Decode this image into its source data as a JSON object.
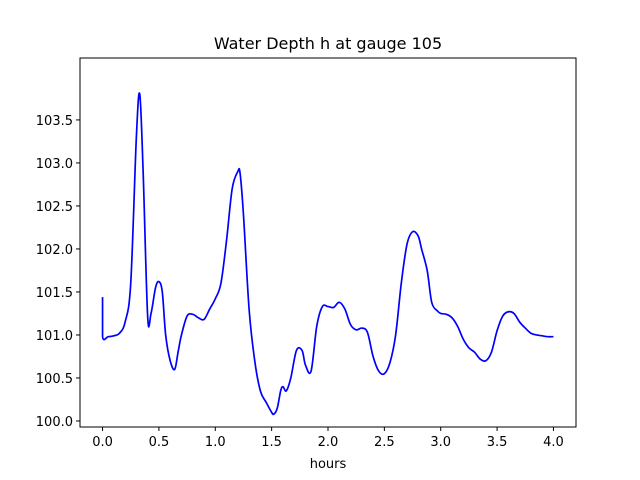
{
  "chart_data": {
    "type": "line",
    "title": "Water Depth h at gauge 105",
    "xlabel": "hours",
    "ylabel": "",
    "xlim": [
      -0.2,
      4.2
    ],
    "ylim": [
      99.93,
      104.22
    ],
    "grid": false,
    "legend": "none",
    "x_ticks": [
      0.0,
      0.5,
      1.0,
      1.5,
      2.0,
      2.5,
      3.0,
      3.5,
      4.0
    ],
    "x_tick_labels": [
      "0.0",
      "0.5",
      "1.0",
      "1.5",
      "2.0",
      "2.5",
      "3.0",
      "3.5",
      "4.0"
    ],
    "y_ticks": [
      100.0,
      100.5,
      101.0,
      101.5,
      102.0,
      102.5,
      103.0,
      103.5
    ],
    "y_tick_labels": [
      "100.0",
      "100.5",
      "101.0",
      "101.5",
      "102.0",
      "102.5",
      "103.0",
      "103.5"
    ],
    "series": [
      {
        "color": "#0000ff",
        "x": [
          0.0,
          0.0,
          0.05,
          0.1,
          0.15,
          0.2,
          0.25,
          0.3,
          0.33,
          0.36,
          0.4,
          0.43,
          0.47,
          0.5,
          0.53,
          0.56,
          0.6,
          0.64,
          0.67,
          0.7,
          0.75,
          0.8,
          0.85,
          0.9,
          0.95,
          1.0,
          1.05,
          1.1,
          1.15,
          1.2,
          1.22,
          1.25,
          1.3,
          1.35,
          1.4,
          1.45,
          1.5,
          1.52,
          1.55,
          1.58,
          1.6,
          1.63,
          1.67,
          1.72,
          1.77,
          1.8,
          1.85,
          1.9,
          1.95,
          2.0,
          2.05,
          2.1,
          2.15,
          2.2,
          2.25,
          2.3,
          2.35,
          2.4,
          2.45,
          2.5,
          2.55,
          2.6,
          2.65,
          2.7,
          2.75,
          2.8,
          2.83,
          2.88,
          2.92,
          2.97,
          3.0,
          3.05,
          3.1,
          3.15,
          3.2,
          3.25,
          3.3,
          3.35,
          3.4,
          3.45,
          3.5,
          3.55,
          3.6,
          3.65,
          3.7,
          3.75,
          3.8,
          3.85,
          3.9,
          3.95,
          4.0
        ],
        "y": [
          101.44,
          100.98,
          100.98,
          100.99,
          101.02,
          101.15,
          101.6,
          103.3,
          103.8,
          102.9,
          101.22,
          101.25,
          101.55,
          101.62,
          101.5,
          101.0,
          100.7,
          100.6,
          100.8,
          101.0,
          101.22,
          101.24,
          101.2,
          101.18,
          101.3,
          101.42,
          101.6,
          102.1,
          102.7,
          102.9,
          102.88,
          102.4,
          101.3,
          100.7,
          100.35,
          100.22,
          100.1,
          100.08,
          100.15,
          100.35,
          100.4,
          100.35,
          100.5,
          100.82,
          100.82,
          100.65,
          100.58,
          101.1,
          101.33,
          101.33,
          101.32,
          101.38,
          101.3,
          101.12,
          101.06,
          101.08,
          101.03,
          100.75,
          100.58,
          100.55,
          100.68,
          101.0,
          101.6,
          102.05,
          102.2,
          102.15,
          102.0,
          101.75,
          101.38,
          101.28,
          101.25,
          101.24,
          101.2,
          101.1,
          100.95,
          100.85,
          100.8,
          100.72,
          100.7,
          100.8,
          101.05,
          101.22,
          101.27,
          101.25,
          101.15,
          101.08,
          101.02,
          101.0,
          100.99,
          100.98,
          100.98
        ]
      }
    ]
  }
}
